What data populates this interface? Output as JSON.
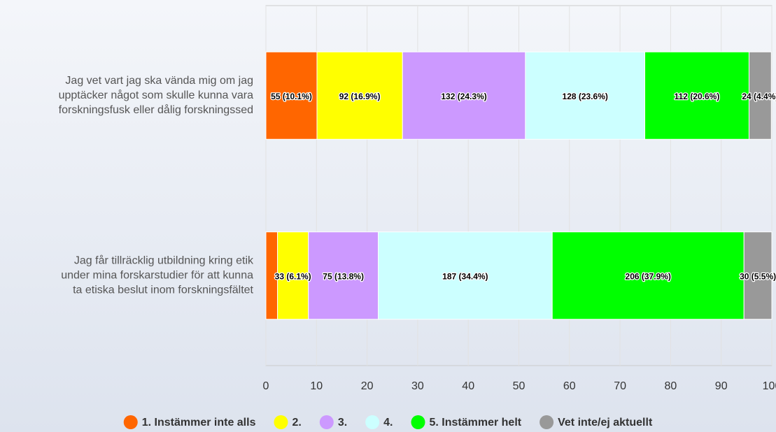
{
  "chart_data": {
    "type": "stacked_bar_horizontal",
    "categories": [
      [
        "Jag vet vart jag ska vända mig om jag",
        "upptäcker något som skulle kunna vara",
        "forskningsfusk eller dålig forskningssed"
      ],
      [
        "Jag får tillräcklig utbildning kring etik",
        "under mina forskarstudier för att kunna",
        "ta etiska beslut inom forskningsfältet"
      ]
    ],
    "series": [
      {
        "name": "1. Instämmer inte alls",
        "color": "#ff6600",
        "values": [
          10.1,
          2.3
        ],
        "value_labels": [
          "55 (10.1%)",
          null
        ]
      },
      {
        "name": "2.",
        "color": "#ffff00",
        "values": [
          16.9,
          6.1
        ],
        "value_labels": [
          "92 (16.9%)",
          "33 (6.1%)"
        ]
      },
      {
        "name": "3.",
        "color": "#cc99ff",
        "values": [
          24.3,
          13.8
        ],
        "value_labels": [
          "132 (24.3%)",
          "75 (13.8%)"
        ]
      },
      {
        "name": "4.",
        "color": "#ccffff",
        "values": [
          23.6,
          34.4
        ],
        "value_labels": [
          "128 (23.6%)",
          "187 (34.4%)"
        ]
      },
      {
        "name": "5. Instämmer helt",
        "color": "#00ff00",
        "values": [
          20.6,
          37.9
        ],
        "value_labels": [
          "112 (20.6%)",
          "206 (37.9%)"
        ]
      },
      {
        "name": "Vet inte/ej aktuellt",
        "color": "#999999",
        "values": [
          4.4,
          5.5
        ],
        "value_labels": [
          "24 (4.4%)",
          "30 (5.5%)"
        ]
      }
    ],
    "xlim": [
      0,
      100
    ],
    "xticks": [
      0,
      10,
      20,
      30,
      40,
      50,
      60,
      70,
      80,
      90,
      100
    ],
    "grid": true,
    "legend": "bottom"
  }
}
